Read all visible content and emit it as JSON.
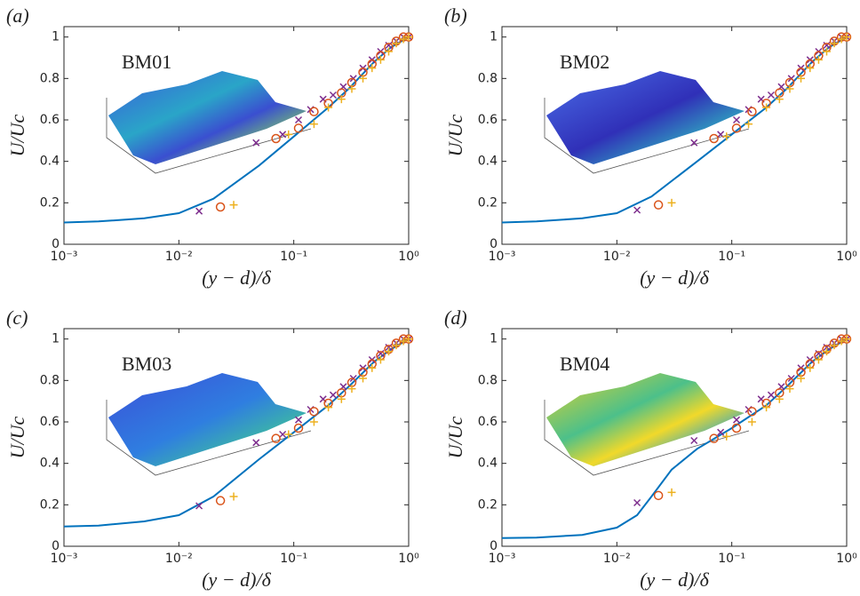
{
  "chart_data": [
    {
      "type": "line",
      "panel_label": "(a)",
      "inset_label": "BM01",
      "xlabel": "(y − d)/δ",
      "ylabel": "U/Uc",
      "xscale": "log",
      "xlim": [
        0.001,
        1
      ],
      "ylim": [
        0,
        1.05
      ],
      "xticks": [
        {
          "value": 0.001,
          "label": "10⁻³"
        },
        {
          "value": 0.01,
          "label": "10⁻²"
        },
        {
          "value": 0.1,
          "label": "10⁻¹"
        },
        {
          "value": 1,
          "label": "10⁰"
        }
      ],
      "yticks": [
        0,
        0.2,
        0.4,
        0.6,
        0.8,
        1
      ],
      "series": [
        {
          "type": "line",
          "color": "#0072bd",
          "x": [
            0.001,
            0.002,
            0.005,
            0.01,
            0.02,
            0.05,
            0.1,
            0.2,
            0.3,
            0.5,
            0.7,
            1
          ],
          "values": [
            0.105,
            0.11,
            0.125,
            0.15,
            0.22,
            0.38,
            0.52,
            0.66,
            0.75,
            0.88,
            0.95,
            1.0
          ]
        },
        {
          "type": "scatter",
          "marker": "x",
          "color": "#7e2f8e",
          "x": [
            0.015,
            0.047,
            0.08,
            0.11,
            0.14,
            0.18,
            0.22,
            0.27,
            0.33,
            0.4,
            0.48,
            0.57,
            0.67,
            0.78,
            0.9,
            1.0
          ],
          "values": [
            0.16,
            0.49,
            0.53,
            0.6,
            0.65,
            0.7,
            0.72,
            0.76,
            0.8,
            0.85,
            0.89,
            0.93,
            0.96,
            0.98,
            1.0,
            1.0
          ]
        },
        {
          "type": "scatter",
          "marker": "o",
          "color": "#d95319",
          "x": [
            0.023,
            0.07,
            0.11,
            0.15,
            0.2,
            0.26,
            0.32,
            0.4,
            0.48,
            0.57,
            0.67,
            0.78,
            0.9,
            1.0
          ],
          "values": [
            0.18,
            0.51,
            0.56,
            0.64,
            0.68,
            0.73,
            0.78,
            0.83,
            0.87,
            0.91,
            0.95,
            0.98,
            1.0,
            1.0
          ]
        },
        {
          "type": "scatter",
          "marker": "+",
          "color": "#edb120",
          "x": [
            0.03,
            0.09,
            0.15,
            0.2,
            0.26,
            0.32,
            0.4,
            0.48,
            0.57,
            0.67,
            0.78,
            0.9,
            1.0
          ],
          "values": [
            0.19,
            0.53,
            0.58,
            0.66,
            0.7,
            0.75,
            0.8,
            0.85,
            0.89,
            0.93,
            0.97,
            0.99,
            1.0
          ]
        }
      ]
    },
    {
      "type": "line",
      "panel_label": "(b)",
      "inset_label": "BM02",
      "xlabel": "(y − d)/δ",
      "ylabel": "U/Uc",
      "xscale": "log",
      "xlim": [
        0.001,
        1
      ],
      "ylim": [
        0,
        1.05
      ],
      "xticks": [
        {
          "value": 0.001,
          "label": "10⁻³"
        },
        {
          "value": 0.01,
          "label": "10⁻²"
        },
        {
          "value": 0.1,
          "label": "10⁻¹"
        },
        {
          "value": 1,
          "label": "10⁰"
        }
      ],
      "yticks": [
        0,
        0.2,
        0.4,
        0.6,
        0.8,
        1
      ],
      "series": [
        {
          "type": "line",
          "color": "#0072bd",
          "x": [
            0.001,
            0.002,
            0.005,
            0.01,
            0.02,
            0.05,
            0.1,
            0.2,
            0.3,
            0.5,
            0.7,
            1
          ],
          "values": [
            0.105,
            0.11,
            0.125,
            0.15,
            0.23,
            0.4,
            0.53,
            0.66,
            0.75,
            0.88,
            0.95,
            1.0
          ]
        },
        {
          "type": "scatter",
          "marker": "x",
          "color": "#7e2f8e",
          "x": [
            0.015,
            0.047,
            0.08,
            0.11,
            0.14,
            0.18,
            0.22,
            0.27,
            0.33,
            0.4,
            0.48,
            0.57,
            0.67,
            0.78,
            0.9,
            1.0
          ],
          "values": [
            0.165,
            0.49,
            0.53,
            0.6,
            0.65,
            0.7,
            0.72,
            0.76,
            0.8,
            0.85,
            0.89,
            0.93,
            0.96,
            0.98,
            1.0,
            1.0
          ]
        },
        {
          "type": "scatter",
          "marker": "o",
          "color": "#d95319",
          "x": [
            0.023,
            0.07,
            0.11,
            0.15,
            0.2,
            0.26,
            0.32,
            0.4,
            0.48,
            0.57,
            0.67,
            0.78,
            0.9,
            1.0
          ],
          "values": [
            0.19,
            0.51,
            0.56,
            0.64,
            0.68,
            0.73,
            0.78,
            0.83,
            0.87,
            0.91,
            0.95,
            0.98,
            1.0,
            1.0
          ]
        },
        {
          "type": "scatter",
          "marker": "+",
          "color": "#edb120",
          "x": [
            0.03,
            0.09,
            0.14,
            0.2,
            0.26,
            0.32,
            0.4,
            0.48,
            0.57,
            0.67,
            0.78,
            0.9,
            1.0
          ],
          "values": [
            0.2,
            0.52,
            0.58,
            0.66,
            0.7,
            0.75,
            0.8,
            0.85,
            0.89,
            0.93,
            0.97,
            0.99,
            1.0
          ]
        }
      ]
    },
    {
      "type": "line",
      "panel_label": "(c)",
      "inset_label": "BM03",
      "xlabel": "(y − d)/δ",
      "ylabel": "U/Uc",
      "xscale": "log",
      "xlim": [
        0.001,
        1
      ],
      "ylim": [
        0,
        1.05
      ],
      "xticks": [
        {
          "value": 0.001,
          "label": "10⁻³"
        },
        {
          "value": 0.01,
          "label": "10⁻²"
        },
        {
          "value": 0.1,
          "label": "10⁻¹"
        },
        {
          "value": 1,
          "label": "10⁰"
        }
      ],
      "yticks": [
        0,
        0.2,
        0.4,
        0.6,
        0.8,
        1
      ],
      "series": [
        {
          "type": "line",
          "color": "#0072bd",
          "x": [
            0.001,
            0.002,
            0.005,
            0.01,
            0.02,
            0.05,
            0.1,
            0.2,
            0.3,
            0.5,
            0.7,
            1
          ],
          "values": [
            0.095,
            0.1,
            0.12,
            0.15,
            0.24,
            0.42,
            0.55,
            0.68,
            0.77,
            0.89,
            0.95,
            1.0
          ]
        },
        {
          "type": "scatter",
          "marker": "x",
          "color": "#7e2f8e",
          "x": [
            0.015,
            0.047,
            0.08,
            0.11,
            0.14,
            0.18,
            0.22,
            0.27,
            0.33,
            0.4,
            0.48,
            0.57,
            0.67,
            0.78,
            0.9,
            1.0
          ],
          "values": [
            0.195,
            0.5,
            0.54,
            0.61,
            0.66,
            0.71,
            0.73,
            0.77,
            0.81,
            0.86,
            0.9,
            0.93,
            0.96,
            0.98,
            1.0,
            1.0
          ]
        },
        {
          "type": "scatter",
          "marker": "o",
          "color": "#d95319",
          "x": [
            0.023,
            0.07,
            0.11,
            0.15,
            0.2,
            0.26,
            0.32,
            0.4,
            0.48,
            0.57,
            0.67,
            0.78,
            0.9,
            1.0
          ],
          "values": [
            0.22,
            0.52,
            0.57,
            0.65,
            0.69,
            0.74,
            0.79,
            0.84,
            0.88,
            0.92,
            0.95,
            0.98,
            1.0,
            1.0
          ]
        },
        {
          "type": "scatter",
          "marker": "+",
          "color": "#edb120",
          "x": [
            0.03,
            0.09,
            0.15,
            0.2,
            0.26,
            0.32,
            0.4,
            0.48,
            0.57,
            0.67,
            0.78,
            0.9,
            1.0
          ],
          "values": [
            0.24,
            0.54,
            0.6,
            0.67,
            0.71,
            0.76,
            0.81,
            0.86,
            0.9,
            0.94,
            0.97,
            0.99,
            1.0
          ]
        }
      ]
    },
    {
      "type": "line",
      "panel_label": "(d)",
      "inset_label": "BM04",
      "xlabel": "(y − d)/δ",
      "ylabel": "U/Uc",
      "xscale": "log",
      "xlim": [
        0.001,
        1
      ],
      "ylim": [
        0,
        1.05
      ],
      "xticks": [
        {
          "value": 0.001,
          "label": "10⁻³"
        },
        {
          "value": 0.01,
          "label": "10⁻²"
        },
        {
          "value": 0.1,
          "label": "10⁻¹"
        },
        {
          "value": 1,
          "label": "10⁰"
        }
      ],
      "yticks": [
        0,
        0.2,
        0.4,
        0.6,
        0.8,
        1
      ],
      "series": [
        {
          "type": "line",
          "color": "#0072bd",
          "x": [
            0.001,
            0.002,
            0.005,
            0.01,
            0.015,
            0.02,
            0.03,
            0.05,
            0.1,
            0.2,
            0.3,
            0.5,
            0.7,
            1
          ],
          "values": [
            0.04,
            0.042,
            0.055,
            0.09,
            0.15,
            0.24,
            0.37,
            0.47,
            0.57,
            0.68,
            0.77,
            0.89,
            0.95,
            1.0
          ]
        },
        {
          "type": "scatter",
          "marker": "x",
          "color": "#7e2f8e",
          "x": [
            0.015,
            0.047,
            0.08,
            0.11,
            0.14,
            0.18,
            0.22,
            0.27,
            0.33,
            0.4,
            0.48,
            0.57,
            0.67,
            0.78,
            0.9,
            1.0
          ],
          "values": [
            0.21,
            0.51,
            0.55,
            0.61,
            0.66,
            0.71,
            0.73,
            0.77,
            0.81,
            0.86,
            0.9,
            0.93,
            0.96,
            0.98,
            1.0,
            1.0
          ]
        },
        {
          "type": "scatter",
          "marker": "o",
          "color": "#d95319",
          "x": [
            0.023,
            0.07,
            0.11,
            0.15,
            0.2,
            0.26,
            0.32,
            0.4,
            0.48,
            0.57,
            0.67,
            0.78,
            0.9,
            1.0
          ],
          "values": [
            0.245,
            0.52,
            0.57,
            0.65,
            0.69,
            0.74,
            0.79,
            0.84,
            0.88,
            0.92,
            0.95,
            0.98,
            1.0,
            1.0
          ]
        },
        {
          "type": "scatter",
          "marker": "+",
          "color": "#edb120",
          "x": [
            0.03,
            0.09,
            0.15,
            0.2,
            0.26,
            0.32,
            0.4,
            0.48,
            0.57,
            0.67,
            0.78,
            0.9,
            1.0
          ],
          "values": [
            0.26,
            0.53,
            0.6,
            0.67,
            0.71,
            0.76,
            0.81,
            0.86,
            0.9,
            0.94,
            0.97,
            0.99,
            1.0
          ]
        }
      ]
    }
  ]
}
